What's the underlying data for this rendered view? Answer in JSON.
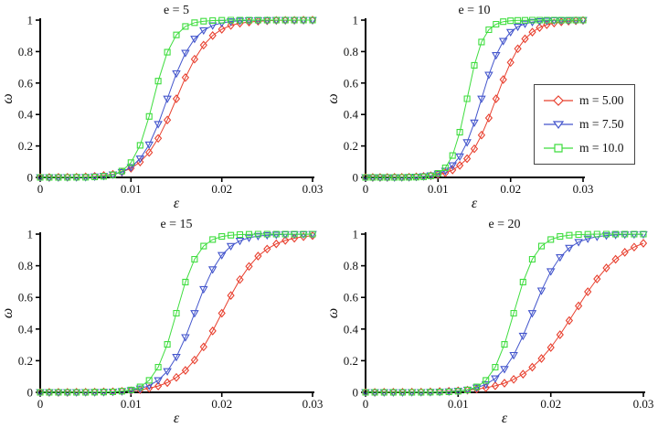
{
  "chart_data": {
    "type": "line",
    "layout": "2x2 grid of subplots",
    "xlabel": "ε",
    "ylabel": "ω",
    "xlim": [
      0,
      0.03
    ],
    "ylim": [
      0,
      1
    ],
    "xticks": [
      0,
      0.01,
      0.02,
      0.03
    ],
    "xtick_labels": [
      "0",
      "0.01",
      "0.02",
      "0.03"
    ],
    "yticks": [
      0,
      0.2,
      0.4,
      0.6,
      0.8,
      1
    ],
    "ytick_labels": [
      "0",
      "0.2",
      "0.4",
      "0.6",
      "0.8",
      "1"
    ],
    "grid": false,
    "axis_color": "#000000",
    "series_styles": [
      {
        "name": "m = 5.00",
        "color": "#e8402f",
        "marker": "diamond"
      },
      {
        "name": "m = 7.50",
        "color": "#4355cc",
        "marker": "triangle-down"
      },
      {
        "name": "m = 10.0",
        "color": "#3fdd3f",
        "marker": "square"
      }
    ],
    "legend": {
      "position": "right of top-right subplot",
      "entries": [
        "m = 5.00",
        "m = 7.50",
        "m = 10.0"
      ]
    },
    "x": [
      0,
      0.001,
      0.002,
      0.003,
      0.004,
      0.005,
      0.006,
      0.007,
      0.008,
      0.009,
      0.01,
      0.011,
      0.012,
      0.013,
      0.014,
      0.015,
      0.016,
      0.017,
      0.018,
      0.019,
      0.02,
      0.021,
      0.022,
      0.023,
      0.024,
      0.025,
      0.026,
      0.027,
      0.028,
      0.029,
      0.03
    ],
    "charts": [
      {
        "title": "e = 5",
        "series": [
          {
            "name": "m = 5.00",
            "values": [
              0,
              0,
              0.001,
              0.001,
              0.002,
              0.004,
              0.007,
              0.012,
              0.02,
              0.034,
              0.058,
              0.098,
              0.159,
              0.248,
              0.365,
              0.5,
              0.635,
              0.752,
              0.841,
              0.902,
              0.942,
              0.966,
              0.98,
              0.988,
              0.993,
              0.996,
              0.998,
              0.999,
              0.999,
              1,
              1
            ]
          },
          {
            "name": "m = 7.50",
            "values": [
              0,
              0,
              0,
              0.001,
              0.001,
              0.002,
              0.005,
              0.009,
              0.018,
              0.034,
              0.065,
              0.119,
              0.209,
              0.339,
              0.5,
              0.661,
              0.791,
              0.881,
              0.935,
              0.966,
              0.982,
              0.991,
              0.995,
              0.998,
              0.999,
              0.999,
              1,
              1,
              1,
              1,
              1
            ]
          },
          {
            "name": "m = 10.0",
            "values": [
              0,
              0,
              0,
              0,
              0.001,
              0.001,
              0.003,
              0.007,
              0.016,
              0.04,
              0.094,
              0.204,
              0.388,
              0.612,
              0.796,
              0.906,
              0.96,
              0.984,
              0.993,
              0.997,
              0.999,
              1,
              1,
              1,
              1,
              1,
              1,
              1,
              1,
              1,
              1
            ]
          }
        ]
      },
      {
        "title": "e = 10",
        "series": [
          {
            "name": "m = 5.00",
            "values": [
              0,
              0,
              0,
              0,
              0.001,
              0.001,
              0.002,
              0.004,
              0.007,
              0.011,
              0.018,
              0.029,
              0.047,
              0.076,
              0.119,
              0.182,
              0.269,
              0.378,
              0.5,
              0.622,
              0.731,
              0.818,
              0.881,
              0.924,
              0.953,
              0.971,
              0.982,
              0.989,
              0.993,
              0.996,
              0.998
            ]
          },
          {
            "name": "m = 7.50",
            "values": [
              0,
              0,
              0,
              0,
              0,
              0.001,
              0.002,
              0.004,
              0.007,
              0.012,
              0.023,
              0.042,
              0.076,
              0.133,
              0.223,
              0.348,
              0.5,
              0.652,
              0.777,
              0.867,
              0.924,
              0.958,
              0.977,
              0.988,
              0.993,
              0.996,
              0.998,
              0.999,
              0.999,
              1,
              1
            ]
          },
          {
            "name": "m = 10.0",
            "values": [
              0,
              0,
              0,
              0,
              0,
              0,
              0.001,
              0.002,
              0.004,
              0.01,
              0.026,
              0.061,
              0.139,
              0.287,
              0.5,
              0.713,
              0.861,
              0.939,
              0.974,
              0.99,
              0.996,
              0.998,
              0.999,
              1,
              1,
              1,
              1,
              1,
              1,
              1,
              1
            ]
          }
        ]
      },
      {
        "title": "e = 15",
        "series": [
          {
            "name": "m = 5.00",
            "values": [
              0,
              0,
              0,
              0,
              0.001,
              0.001,
              0.002,
              0.003,
              0.004,
              0.007,
              0.01,
              0.016,
              0.026,
              0.04,
              0.061,
              0.094,
              0.139,
              0.204,
              0.287,
              0.388,
              0.5,
              0.612,
              0.713,
              0.796,
              0.861,
              0.906,
              0.939,
              0.96,
              0.974,
              0.984,
              0.99
            ]
          },
          {
            "name": "m = 7.50",
            "values": [
              0,
              0,
              0,
              0,
              0,
              0.001,
              0.001,
              0.002,
              0.004,
              0.007,
              0.012,
              0.023,
              0.042,
              0.076,
              0.133,
              0.223,
              0.348,
              0.5,
              0.652,
              0.777,
              0.867,
              0.924,
              0.958,
              0.977,
              0.988,
              0.993,
              0.996,
              0.998,
              0.999,
              0.999,
              1
            ]
          },
          {
            "name": "m = 10.0",
            "values": [
              0,
              0,
              0,
              0,
              0,
              0,
              0.001,
              0.002,
              0.003,
              0.007,
              0.015,
              0.034,
              0.076,
              0.159,
              0.303,
              0.5,
              0.697,
              0.841,
              0.924,
              0.966,
              0.985,
              0.993,
              0.997,
              0.999,
              1,
              1,
              1,
              1,
              1,
              1,
              1
            ]
          }
        ]
      },
      {
        "title": "e = 20",
        "series": [
          {
            "name": "m = 5.00",
            "values": [
              0,
              0,
              0.001,
              0.001,
              0.001,
              0.002,
              0.002,
              0.003,
              0.005,
              0.007,
              0.01,
              0.014,
              0.02,
              0.029,
              0.041,
              0.058,
              0.082,
              0.115,
              0.159,
              0.214,
              0.283,
              0.364,
              0.454,
              0.546,
              0.636,
              0.717,
              0.786,
              0.841,
              0.885,
              0.918,
              0.942
            ]
          },
          {
            "name": "m = 7.50",
            "values": [
              0,
              0,
              0,
              0,
              0,
              0.001,
              0.001,
              0.002,
              0.003,
              0.005,
              0.009,
              0.016,
              0.029,
              0.05,
              0.087,
              0.147,
              0.235,
              0.357,
              0.5,
              0.643,
              0.765,
              0.853,
              0.913,
              0.95,
              0.971,
              0.984,
              0.991,
              0.995,
              0.997,
              0.998,
              0.999
            ]
          },
          {
            "name": "m = 10.0",
            "values": [
              0,
              0,
              0,
              0,
              0,
              0,
              0,
              0.001,
              0.002,
              0.003,
              0.007,
              0.015,
              0.034,
              0.076,
              0.159,
              0.303,
              0.5,
              0.697,
              0.841,
              0.924,
              0.966,
              0.985,
              0.993,
              0.997,
              0.999,
              1,
              1,
              1,
              1,
              1,
              1
            ]
          }
        ]
      }
    ]
  }
}
